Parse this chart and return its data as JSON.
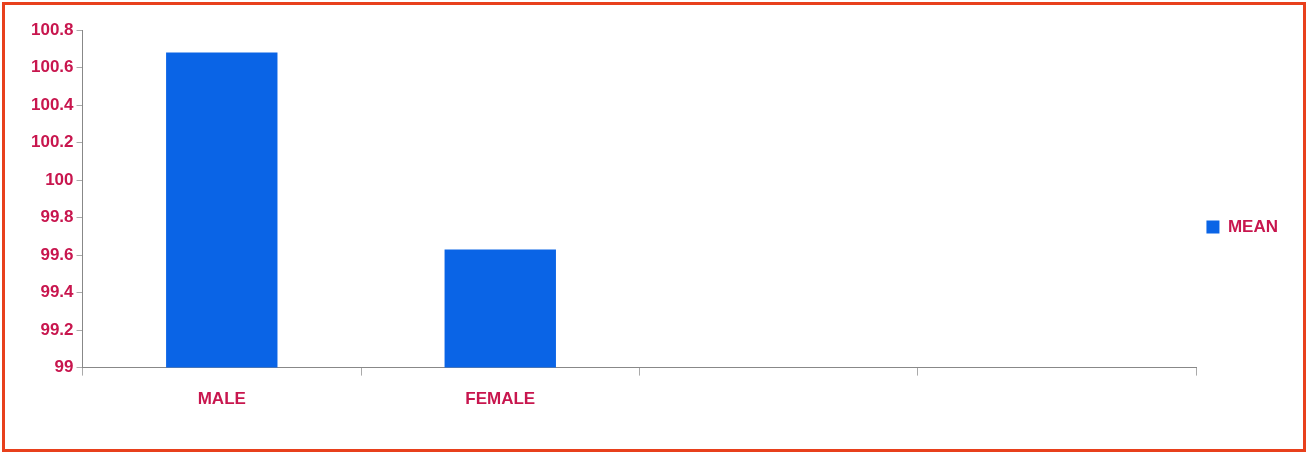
{
  "chart_data": {
    "type": "bar",
    "categories": [
      "MALE",
      "FEMALE",
      null,
      null
    ],
    "series": [
      {
        "name": "MEAN",
        "color": "#0a64e6",
        "values": [
          100.68,
          99.63,
          null,
          null
        ]
      }
    ],
    "ylim": [
      99,
      100.8
    ],
    "yticks": [
      99,
      99.2,
      99.4,
      99.6,
      99.8,
      100,
      100.2,
      100.4,
      100.6,
      100.8
    ],
    "grid": false,
    "legend": "right"
  }
}
